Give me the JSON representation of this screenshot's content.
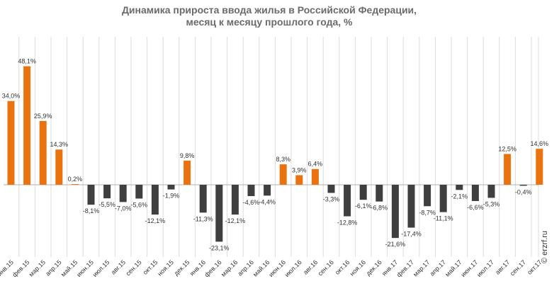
{
  "chart_data": {
    "type": "bar",
    "title": "Динамика прироста ввода жилья в Российской Федерации,",
    "subtitle": "месяц к месяцу прошлого года, %",
    "xlabel": "",
    "ylabel": "",
    "categories": [
      "янв.15",
      "фев.15",
      "мар.15",
      "апр.15",
      "май.15",
      "июн.15",
      "июл.15",
      "авг.15",
      "сен.15",
      "окт.15",
      "ноя.15",
      "дек.15",
      "янв.16",
      "фев.16",
      "мар.16",
      "апр.16",
      "май.16",
      "июн.16",
      "июл.16",
      "авг.16",
      "сен.16",
      "окт.16",
      "ноя.16",
      "дек.16",
      "янв.17",
      "фев.17",
      "мар.17",
      "апр.17",
      "май.17",
      "июн.17",
      "июл.17",
      "авг.17",
      "сен.17",
      "окт.17"
    ],
    "values": [
      34.0,
      48.1,
      25.9,
      14.3,
      0.2,
      -8.1,
      -5.5,
      -7.0,
      -5.6,
      -12.1,
      -1.9,
      9.8,
      -11.3,
      -23.1,
      -12.1,
      -4.6,
      -4.4,
      8.3,
      3.9,
      6.4,
      -3.3,
      -12.8,
      -6.1,
      -6.8,
      -21.6,
      -17.4,
      -8.7,
      -11.1,
      -2.1,
      -6.6,
      -5.3,
      12.5,
      -0.4,
      14.6
    ],
    "data_labels": [
      "34,0%",
      "48,1%",
      "25,9%",
      "14,3%",
      "0,2%",
      "-8,1%",
      "-5,5%",
      "-7,0%",
      "-5,6%",
      "-12,1%",
      "-1,9%",
      "9,8%",
      "-11,3%",
      "-23,1%",
      "-12,1%",
      "-4,6%",
      "-4,4%",
      "8,3%",
      "3,9%",
      "6,4%",
      "-3,3%",
      "-12,8%",
      "-6,1%",
      "-6,8%",
      "-21,6%",
      "-17,4%",
      "-8,7%",
      "-11,1%",
      "-2,1%",
      "-6,6%",
      "-5,3%",
      "12,5%",
      "-0,4%",
      "14,6%"
    ],
    "ylim": [
      -28,
      58
    ],
    "grid": true,
    "legend": "none",
    "colors": {
      "positive": "#ea730f",
      "negative": "#3f3f3f",
      "grid": "#dcdcdc",
      "axis": "#b0b0b0"
    }
  },
  "watermark": "© erzrf.ru"
}
